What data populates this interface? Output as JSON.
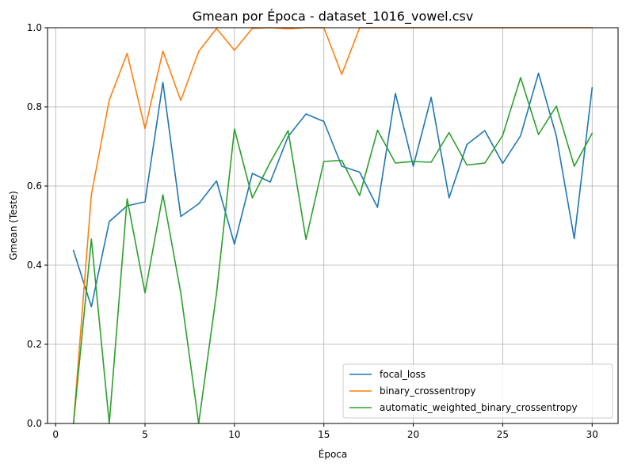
{
  "chart_data": {
    "type": "line",
    "title": "Gmean por Época - dataset_1016_vowel.csv",
    "xlabel": "Época",
    "ylabel": "Gmean (Teste)",
    "xlim": [
      -0.45,
      31.45
    ],
    "ylim": [
      0.0,
      1.0
    ],
    "xticks": [
      0,
      5,
      10,
      15,
      20,
      25,
      30
    ],
    "yticks": [
      0.0,
      0.2,
      0.4,
      0.6,
      0.8,
      1.0
    ],
    "xtick_labels": [
      "0",
      "5",
      "10",
      "15",
      "20",
      "25",
      "30"
    ],
    "ytick_labels": [
      "0.0",
      "0.2",
      "0.4",
      "0.6",
      "0.8",
      "1.0"
    ],
    "grid": true,
    "legend_position": "lower-right",
    "x": [
      1,
      2,
      3,
      4,
      5,
      6,
      7,
      8,
      9,
      10,
      11,
      12,
      13,
      14,
      15,
      16,
      17,
      18,
      19,
      20,
      21,
      22,
      23,
      24,
      25,
      26,
      27,
      28,
      29,
      30
    ],
    "series": [
      {
        "name": "focal_loss",
        "color": "#1f77b4",
        "values": [
          0.437,
          0.295,
          0.51,
          0.55,
          0.56,
          0.862,
          0.523,
          0.555,
          0.613,
          0.453,
          0.632,
          0.61,
          0.725,
          0.782,
          0.763,
          0.65,
          0.635,
          0.546,
          0.834,
          0.65,
          0.824,
          0.57,
          0.705,
          0.74,
          0.657,
          0.727,
          0.885,
          0.726,
          0.467,
          0.848
        ]
      },
      {
        "name": "binary_crossentropy",
        "color": "#ff7f0e",
        "values": [
          0.0,
          0.578,
          0.817,
          0.935,
          0.745,
          0.941,
          0.816,
          0.94,
          0.998,
          0.943,
          0.998,
          1.0,
          0.997,
          1.0,
          1.0,
          0.882,
          1.0,
          1.0,
          1.0,
          1.0,
          1.0,
          1.0,
          1.0,
          1.0,
          1.0,
          1.0,
          1.0,
          1.0,
          1.0,
          1.0
        ]
      },
      {
        "name": "automatic_weighted_binary_crossentropy",
        "color": "#2ca02c",
        "values": [
          0.0,
          0.466,
          0.0,
          0.568,
          0.33,
          0.578,
          0.33,
          0.0,
          0.33,
          0.744,
          0.57,
          0.66,
          0.74,
          0.465,
          0.662,
          0.665,
          0.576,
          0.741,
          0.658,
          0.662,
          0.66,
          0.735,
          0.653,
          0.658,
          0.728,
          0.874,
          0.73,
          0.802,
          0.65,
          0.733
        ]
      }
    ]
  }
}
